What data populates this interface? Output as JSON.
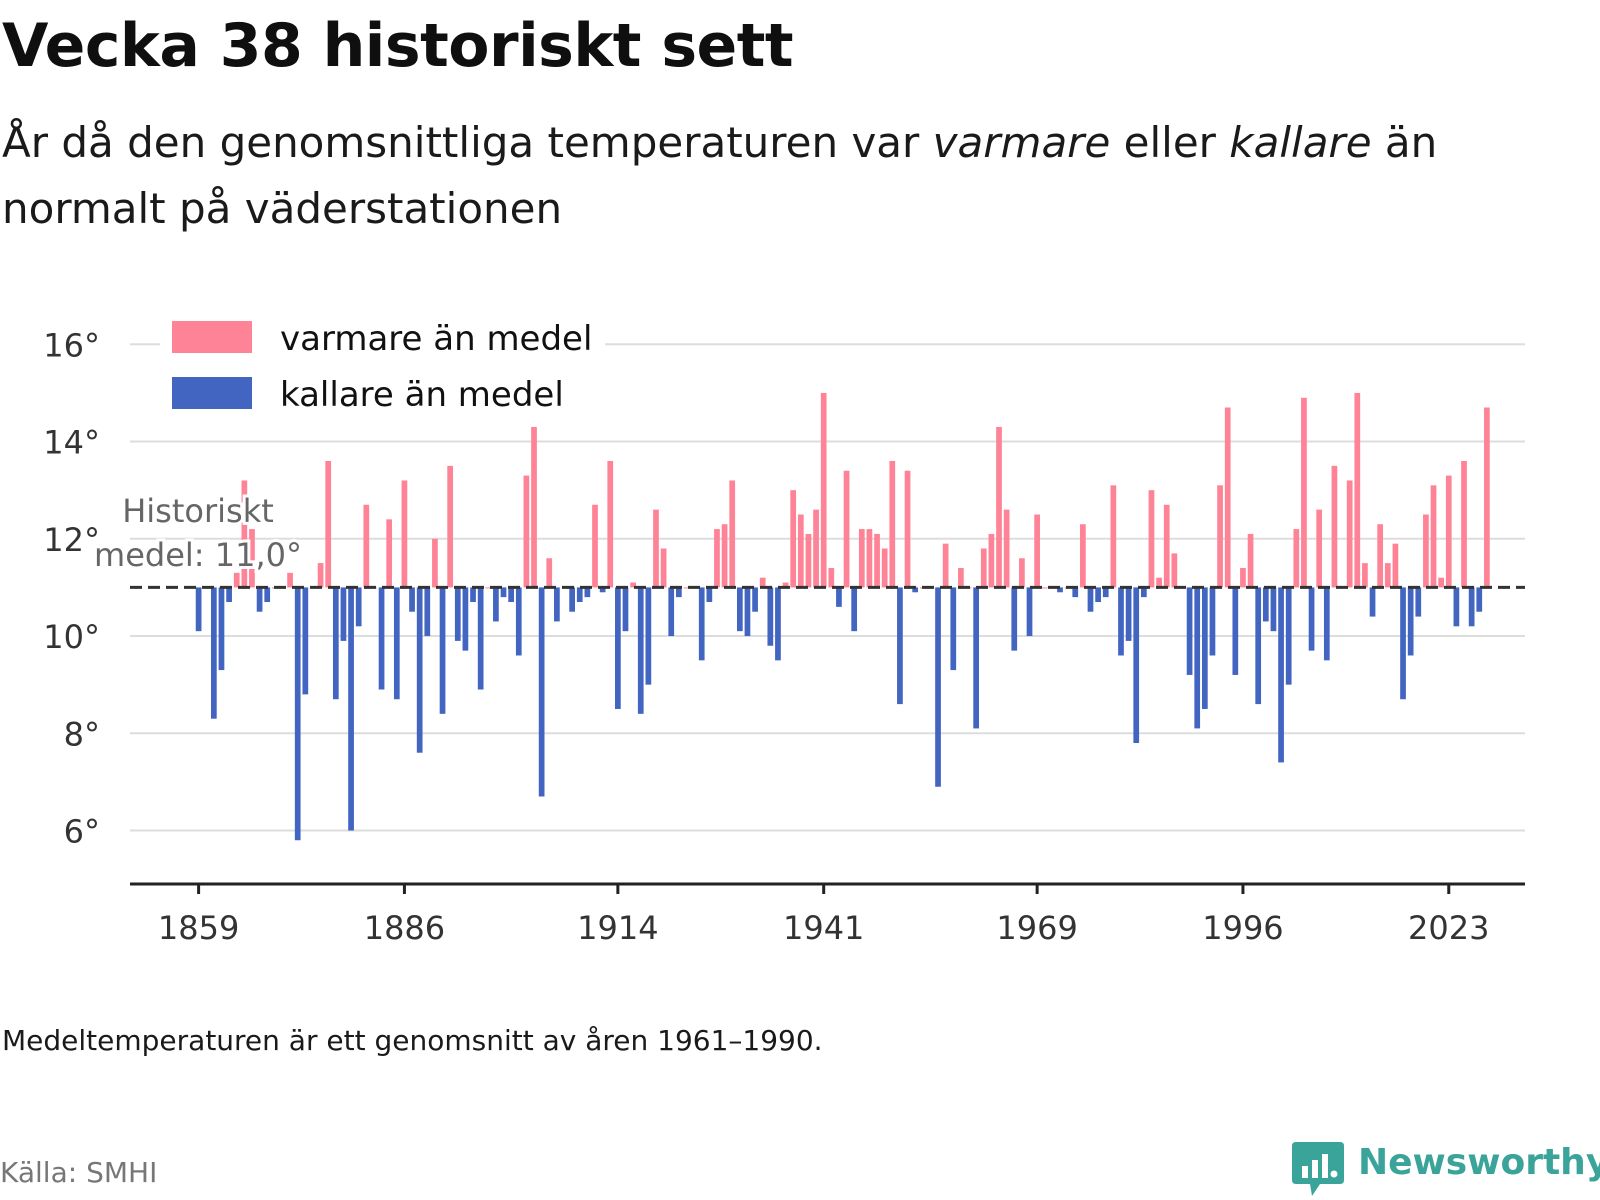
{
  "header": {
    "title": "Vecka 38 historiskt sett",
    "subtitle_pre": "År då den genomsnittliga temperaturen var ",
    "subtitle_em1": "varmare",
    "subtitle_mid": " eller ",
    "subtitle_em2": "kallare",
    "subtitle_post": " än normalt på väderstationen"
  },
  "footer": {
    "note": "Medeltemperaturen är ett genomsnitt av åren 1961–1990.",
    "source": "Källa: SMHI",
    "brand": "Newsworthy"
  },
  "colors": {
    "warm": "#ff8396",
    "cold": "#4265c1",
    "grid": "#dddddd",
    "axis": "#222222",
    "baseline": "#333333"
  },
  "chart_data": {
    "type": "bar",
    "baseline": 11.0,
    "baseline_label_line1": "Historiskt",
    "baseline_label_line2": "medel: 11,0°",
    "ylim": [
      4.9,
      16.5
    ],
    "y_ticks": [
      {
        "value": 6,
        "label": "6°"
      },
      {
        "value": 8,
        "label": "8°"
      },
      {
        "value": 10,
        "label": "10°"
      },
      {
        "value": 12,
        "label": "12°"
      },
      {
        "value": 14,
        "label": "14°"
      },
      {
        "value": 16,
        "label": "16°"
      }
    ],
    "x_ticks": [
      {
        "value": 1859,
        "label": "1859"
      },
      {
        "value": 1886,
        "label": "1886"
      },
      {
        "value": 1914,
        "label": "1914"
      },
      {
        "value": 1941,
        "label": "1941"
      },
      {
        "value": 1969,
        "label": "1969"
      },
      {
        "value": 1996,
        "label": "1996"
      },
      {
        "value": 2023,
        "label": "2023"
      }
    ],
    "xlim": [
      1850,
      2033
    ],
    "legend": [
      {
        "key": "warm",
        "label": "varmare än medel"
      },
      {
        "key": "cold",
        "label": "kallare än medel"
      }
    ],
    "legend_position": "top-left",
    "grid": true,
    "start_year": 1859,
    "values": [
      10.1,
      11.0,
      8.3,
      9.3,
      10.7,
      11.3,
      13.2,
      12.2,
      10.5,
      10.7,
      11.0,
      11.0,
      11.3,
      5.8,
      8.8,
      11.0,
      11.5,
      13.6,
      8.7,
      9.9,
      6.0,
      10.2,
      12.7,
      11.0,
      8.9,
      12.4,
      8.7,
      13.2,
      10.5,
      7.6,
      10.0,
      12.0,
      8.4,
      13.5,
      9.9,
      9.7,
      10.7,
      8.9,
      11.0,
      10.3,
      10.8,
      10.7,
      9.6,
      13.3,
      14.3,
      6.7,
      11.6,
      10.3,
      11.0,
      10.5,
      10.7,
      10.8,
      12.7,
      10.9,
      13.6,
      8.5,
      10.1,
      11.1,
      8.4,
      9.0,
      12.6,
      11.8,
      10.0,
      10.8,
      11.0,
      11.0,
      9.5,
      10.7,
      12.2,
      12.3,
      13.2,
      10.1,
      10.0,
      10.5,
      11.2,
      9.8,
      9.5,
      11.1,
      13.0,
      12.5,
      12.1,
      12.6,
      15.0,
      11.4,
      10.6,
      13.4,
      10.1,
      12.2,
      12.2,
      12.1,
      11.8,
      13.6,
      8.6,
      13.4,
      10.9,
      11.0,
      11.0,
      6.9,
      11.9,
      9.3,
      11.4,
      11.0,
      8.1,
      11.8,
      12.1,
      14.3,
      12.6,
      9.7,
      11.6,
      10.0,
      12.5,
      11.0,
      11.0,
      10.9,
      11.0,
      10.8,
      12.3,
      10.5,
      10.7,
      10.8,
      13.1,
      9.6,
      9.9,
      7.8,
      10.8,
      13.0,
      11.2,
      12.7,
      11.7,
      11.0,
      9.2,
      8.1,
      8.5,
      9.6,
      13.1,
      14.7,
      9.2,
      11.4,
      12.1,
      8.6,
      10.3,
      10.1,
      7.4,
      9.0,
      12.2,
      14.9,
      9.7,
      12.6,
      9.5,
      13.5,
      11.0,
      13.2,
      15.0,
      11.5,
      10.4,
      12.3,
      11.5,
      11.9,
      8.7,
      9.6,
      10.4,
      12.5,
      13.1,
      11.2,
      13.3,
      10.2,
      13.6,
      10.2,
      10.5,
      14.7
    ]
  }
}
